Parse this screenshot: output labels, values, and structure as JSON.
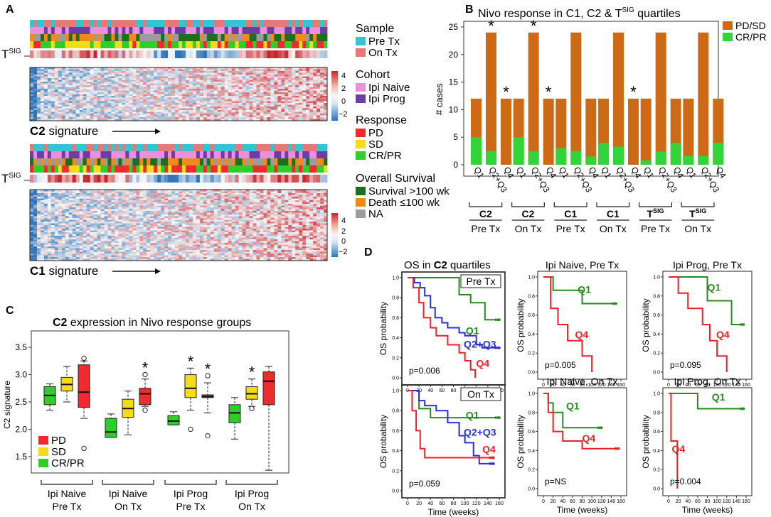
{
  "figure_letters": {
    "A": "A",
    "B": "B",
    "C": "C",
    "D": "D"
  },
  "colors": {
    "pre_tx": "#36c3d2",
    "on_tx": "#e47a78",
    "ipi_naive": "#ee8fde",
    "ipi_prog": "#6e3ca8",
    "pd": "#ef2b2f",
    "sd": "#f4dc18",
    "crpr": "#2fce2b",
    "survival": "#1e6f1d",
    "death": "#f08a1a",
    "na": "#9c9c9c",
    "pdsd_bar": "#cc6a15",
    "crpr_bar": "#33d33a",
    "q1_line": "#2a8a22",
    "q23_line": "#2a2ed9",
    "q4_line": "#ec2128",
    "heat_low": "#2f73b8",
    "heat_mid": "#f7f7f7",
    "heat_high": "#c8242c"
  },
  "panel_a": {
    "tsig_label": {
      "base": "T",
      "sup": "SIG"
    },
    "c2_caption": {
      "bold": "C2",
      "rest": " signature"
    },
    "c1_caption": {
      "bold": "C1",
      "rest": " signature"
    },
    "arrow": "⟶",
    "colorbar_ticks": [
      "4",
      "2",
      "0",
      "−2"
    ],
    "legend": {
      "sample_title": "Sample",
      "pre_tx": "Pre Tx",
      "on_tx": "On Tx",
      "cohort_title": "Cohort",
      "ipi_naive": "Ipi Naive",
      "ipi_prog": "Ipi Prog",
      "response_title": "Response",
      "pd": "PD",
      "sd": "SD",
      "crpr": "CR/PR",
      "os_title": "Overall Survival",
      "survival": "Survival >100 wk",
      "death": "Death ≤100 wk",
      "na": "NA"
    }
  },
  "chart_data": [
    {
      "type": "bar",
      "title": "Nivo response in C1, C2 & T^SIG quartiles",
      "title_parts": {
        "prefix": "Nivo response in ",
        "c1": "C1",
        "mid": ", ",
        "c2": "C2",
        "amp": " & T",
        "sup": "SIG",
        "suffix": " quartiles"
      },
      "ylabel": "# cases",
      "ylim": [
        0,
        26
      ],
      "yticks": [
        "0",
        "5",
        "10",
        "15",
        "20",
        "25"
      ],
      "legend": [
        "PD/SD",
        "CR/PR"
      ],
      "groups": [
        {
          "sig": "C2",
          "time": "Pre Tx",
          "bars": [
            {
              "q": "Q1",
              "total": 12,
              "crpr": 5,
              "star": false
            },
            {
              "q": "Q2+Q3",
              "total": 24,
              "crpr": 2.5,
              "star": true
            },
            {
              "q": "Q4",
              "total": 12,
              "crpr": 0,
              "star": true
            }
          ]
        },
        {
          "sig": "C2",
          "time": "On Tx",
          "bars": [
            {
              "q": "Q1",
              "total": 12,
              "crpr": 5,
              "star": false
            },
            {
              "q": "Q2+Q3",
              "total": 24,
              "crpr": 2.5,
              "star": true
            },
            {
              "q": "Q4",
              "total": 12,
              "crpr": 0,
              "star": true
            }
          ]
        },
        {
          "sig": "C1",
          "time": "Pre Tx",
          "bars": [
            {
              "q": "Q1",
              "total": 12,
              "crpr": 3,
              "star": false
            },
            {
              "q": "Q2+Q3",
              "total": 24,
              "crpr": 2.5,
              "star": false
            },
            {
              "q": "Q4",
              "total": 12,
              "crpr": 1.5,
              "star": false
            }
          ]
        },
        {
          "sig": "C1",
          "time": "On Tx",
          "bars": [
            {
              "q": "Q1",
              "total": 12,
              "crpr": 4,
              "star": false
            },
            {
              "q": "Q2+Q3",
              "total": 24,
              "crpr": 3.3,
              "star": false
            },
            {
              "q": "Q4",
              "total": 12,
              "crpr": 0,
              "star": true
            }
          ]
        },
        {
          "sig": "T^SIG",
          "time": "Pre Tx",
          "bars": [
            {
              "q": "Q1",
              "total": 12,
              "crpr": 0.8,
              "star": false
            },
            {
              "q": "Q2+Q3",
              "total": 24,
              "crpr": 2.4,
              "star": false
            },
            {
              "q": "Q4",
              "total": 12,
              "crpr": 4,
              "star": false
            }
          ]
        },
        {
          "sig": "T^SIG",
          "time": "On Tx",
          "bars": [
            {
              "q": "Q1",
              "total": 12,
              "crpr": 1.6,
              "star": false
            },
            {
              "q": "Q2+Q3",
              "total": 24,
              "crpr": 1.6,
              "star": false
            },
            {
              "q": "Q4",
              "total": 12,
              "crpr": 4,
              "star": false
            }
          ]
        }
      ],
      "tsig_text": {
        "base": "T",
        "sup": "SIG"
      },
      "star": "*"
    },
    {
      "type": "box",
      "title_parts": {
        "bold": "C2",
        "rest": " expression in Nivo response groups"
      },
      "ylabel": "C2 signature",
      "ylim": [
        1.2,
        3.8
      ],
      "yticks": [
        "1.5",
        "2.0",
        "2.5",
        "3.0",
        "3.5"
      ],
      "legend": [
        "PD",
        "SD",
        "CR/PR"
      ],
      "groups": [
        {
          "label1": "Ipi Naive",
          "label2": "Pre Tx",
          "boxes": [
            {
              "resp": "CR/PR",
              "whislo": 2.35,
              "q1": 2.45,
              "med": 2.62,
              "q3": 2.78,
              "whishi": 2.83,
              "fliers": [],
              "star": false
            },
            {
              "resp": "SD",
              "whislo": 2.5,
              "q1": 2.7,
              "med": 2.82,
              "q3": 2.95,
              "whishi": 3.15,
              "fliers": [],
              "star": false
            },
            {
              "resp": "PD",
              "whislo": 2.2,
              "q1": 2.4,
              "med": 2.68,
              "q3": 3.18,
              "whishi": 3.25,
              "fliers": [
                3.3,
                1.65
              ],
              "star": false
            }
          ]
        },
        {
          "label1": "Ipi Naive",
          "label2": "On Tx",
          "boxes": [
            {
              "resp": "CR/PR",
              "whislo": 1.85,
              "q1": 1.85,
              "med": 1.95,
              "q3": 2.2,
              "whishi": 2.28,
              "fliers": [],
              "star": false
            },
            {
              "resp": "SD",
              "whislo": 1.9,
              "q1": 2.22,
              "med": 2.38,
              "q3": 2.55,
              "whishi": 2.7,
              "fliers": [],
              "star": false
            },
            {
              "resp": "PD",
              "whislo": 2.42,
              "q1": 2.45,
              "med": 2.65,
              "q3": 2.75,
              "whishi": 2.92,
              "fliers": [
                3.0,
                2.35
              ],
              "star": true
            }
          ]
        },
        {
          "label1": "Ipi Prog",
          "label2": "Pre Tx",
          "boxes": [
            {
              "resp": "CR/PR",
              "whislo": 2.08,
              "q1": 2.08,
              "med": 2.15,
              "q3": 2.25,
              "whishi": 2.32,
              "fliers": [],
              "star": false
            },
            {
              "resp": "SD",
              "whislo": 2.35,
              "q1": 2.58,
              "med": 2.75,
              "q3": 3.0,
              "whishi": 3.12,
              "fliers": [
                2.0
              ],
              "star": true
            },
            {
              "resp": "PD",
              "whislo": 2.3,
              "q1": 2.58,
              "med": 2.6,
              "q3": 2.63,
              "whishi": 2.85,
              "fliers": [
                2.98,
                1.88
              ],
              "star": true
            }
          ]
        },
        {
          "label1": "Ipi Prog",
          "label2": "On Tx",
          "boxes": [
            {
              "resp": "CR/PR",
              "whislo": 1.82,
              "q1": 2.12,
              "med": 2.3,
              "q3": 2.45,
              "whishi": 2.58,
              "fliers": [],
              "star": false
            },
            {
              "resp": "SD",
              "whislo": 2.42,
              "q1": 2.55,
              "med": 2.65,
              "q3": 2.78,
              "whishi": 2.92,
              "fliers": [
                2.38
              ],
              "star": true
            },
            {
              "resp": "PD",
              "whislo": 1.25,
              "q1": 2.45,
              "med": 2.88,
              "q3": 3.05,
              "whishi": 3.15,
              "fliers": [],
              "star": false
            }
          ]
        }
      ],
      "star": "*"
    },
    {
      "type": "line",
      "subtype": "kaplan-meier",
      "title_parts": {
        "prefix": "OS in ",
        "bold": "C2",
        "suffix": " quartiles"
      },
      "ylabel": "OS probability",
      "xlabel": "Time (weeks)",
      "xticks": [
        "0",
        "20",
        "40",
        "60",
        "80",
        "100",
        "120",
        "140",
        "160"
      ],
      "yticks": [
        "0.0",
        "0.2",
        "0.4",
        "0.6",
        "0.8",
        "1.0"
      ],
      "xlim": [
        0,
        160
      ],
      "ylim": [
        0,
        1.0
      ],
      "panels": [
        {
          "id": "c2_pre",
          "box_label": "Pre Tx",
          "pvalue": "p=0.006",
          "curves": [
            {
              "name": "Q1",
              "color_key": "q1_line",
              "steps": [
                [
                  0,
                  1
                ],
                [
                  90,
                  0.83
                ],
                [
                  110,
                  0.75
                ],
                [
                  135,
                  0.58
                ],
                [
                  160,
                  0.58
                ]
              ]
            },
            {
              "name": "Q2+Q3",
              "color_key": "q23_line",
              "steps": [
                [
                  0,
                  1
                ],
                [
                  12,
                  0.95
                ],
                [
                  22,
                  0.9
                ],
                [
                  30,
                  0.82
                ],
                [
                  40,
                  0.7
                ],
                [
                  48,
                  0.6
                ],
                [
                  60,
                  0.55
                ],
                [
                  70,
                  0.5
                ],
                [
                  90,
                  0.45
                ],
                [
                  100,
                  0.42
                ],
                [
                  120,
                  0.33
                ],
                [
                  130,
                  0.3
                ],
                [
                  160,
                  0.3
                ]
              ]
            },
            {
              "name": "Q4",
              "color_key": "q4_line",
              "steps": [
                [
                  0,
                  1
                ],
                [
                  10,
                  0.9
                ],
                [
                  20,
                  0.75
                ],
                [
                  28,
                  0.6
                ],
                [
                  40,
                  0.5
                ],
                [
                  50,
                  0.42
                ],
                [
                  70,
                  0.33
                ],
                [
                  90,
                  0.25
                ],
                [
                  100,
                  0.17
                ],
                [
                  110,
                  0.08
                ],
                [
                  118,
                  0
                ]
              ]
            }
          ]
        },
        {
          "id": "c2_on",
          "box_label": "On Tx",
          "pvalue": "p=0.059",
          "curves": [
            {
              "name": "Q1",
              "color_key": "q1_line",
              "steps": [
                [
                  0,
                  1
                ],
                [
                  20,
                  0.82
                ],
                [
                  40,
                  0.73
                ],
                [
                  160,
                  0.73
                ]
              ]
            },
            {
              "name": "Q2+Q3",
              "color_key": "q23_line",
              "steps": [
                [
                  0,
                  1
                ],
                [
                  20,
                  0.9
                ],
                [
                  30,
                  0.85
                ],
                [
                  50,
                  0.8
                ],
                [
                  70,
                  0.68
                ],
                [
                  90,
                  0.55
                ],
                [
                  100,
                  0.48
                ],
                [
                  115,
                  0.35
                ],
                [
                  125,
                  0.27
                ],
                [
                  150,
                  0.27
                ]
              ]
            },
            {
              "name": "Q4",
              "color_key": "q4_line",
              "steps": [
                [
                  0,
                  1
                ],
                [
                  8,
                  0.8
                ],
                [
                  15,
                  0.6
                ],
                [
                  22,
                  0.42
                ],
                [
                  30,
                  0.33
                ],
                [
                  150,
                  0.33
                ]
              ]
            }
          ]
        },
        {
          "id": "naive_pre",
          "title": "Ipi Naive, Pre Tx",
          "pvalue": "p=0.005",
          "curves": [
            {
              "name": "Q1",
              "color_key": "q1_line",
              "steps": [
                [
                  0,
                  1
                ],
                [
                  20,
                  0.86
                ],
                [
                  80,
                  0.72
                ],
                [
                  150,
                  0.72
                ]
              ]
            },
            {
              "name": "Q4",
              "color_key": "q4_line",
              "steps": [
                [
                  0,
                  1
                ],
                [
                  15,
                  0.67
                ],
                [
                  30,
                  0.5
                ],
                [
                  50,
                  0.33
                ],
                [
                  80,
                  0.17
                ],
                [
                  100,
                  0
                ]
              ]
            }
          ]
        },
        {
          "id": "prog_pre",
          "title": "Ipi Prog, Pre Tx",
          "pvalue": "p=0.095",
          "curves": [
            {
              "name": "Q1",
              "color_key": "q1_line",
              "steps": [
                [
                  0,
                  1
                ],
                [
                  80,
                  0.75
                ],
                [
                  130,
                  0.5
                ],
                [
                  155,
                  0.5
                ]
              ]
            },
            {
              "name": "Q4",
              "color_key": "q4_line",
              "steps": [
                [
                  0,
                  1
                ],
                [
                  20,
                  0.83
                ],
                [
                  40,
                  0.67
                ],
                [
                  70,
                  0.5
                ],
                [
                  85,
                  0.33
                ],
                [
                  100,
                  0.17
                ],
                [
                  120,
                  0
                ]
              ]
            }
          ]
        },
        {
          "id": "naive_on",
          "title": "Ipi Naive, On Tx",
          "pvalue": "p=NS",
          "curves": [
            {
              "name": "Q1",
              "color_key": "q1_line",
              "steps": [
                [
                  0,
                  1
                ],
                [
                  10,
                  0.9
                ],
                [
                  20,
                  0.8
                ],
                [
                  40,
                  0.64
                ],
                [
                  120,
                  0.64
                ]
              ]
            },
            {
              "name": "Q4",
              "color_key": "q4_line",
              "steps": [
                [
                  0,
                  1
                ],
                [
                  10,
                  0.8
                ],
                [
                  20,
                  0.6
                ],
                [
                  40,
                  0.5
                ],
                [
                  80,
                  0.42
                ],
                [
                  155,
                  0.42
                ]
              ]
            }
          ]
        },
        {
          "id": "prog_on",
          "title": "Ipi Prog, On Tx",
          "pvalue": "p=0.004",
          "curves": [
            {
              "name": "Q1",
              "color_key": "q1_line",
              "steps": [
                [
                  0,
                  1
                ],
                [
                  50,
                  1
                ],
                [
                  60,
                  0.84
                ],
                [
                  155,
                  0.84
                ]
              ]
            },
            {
              "name": "Q4",
              "color_key": "q4_line",
              "steps": [
                [
                  0,
                  1
                ],
                [
                  5,
                  0.5
                ],
                [
                  18,
                  0
                ]
              ]
            }
          ]
        }
      ]
    }
  ]
}
